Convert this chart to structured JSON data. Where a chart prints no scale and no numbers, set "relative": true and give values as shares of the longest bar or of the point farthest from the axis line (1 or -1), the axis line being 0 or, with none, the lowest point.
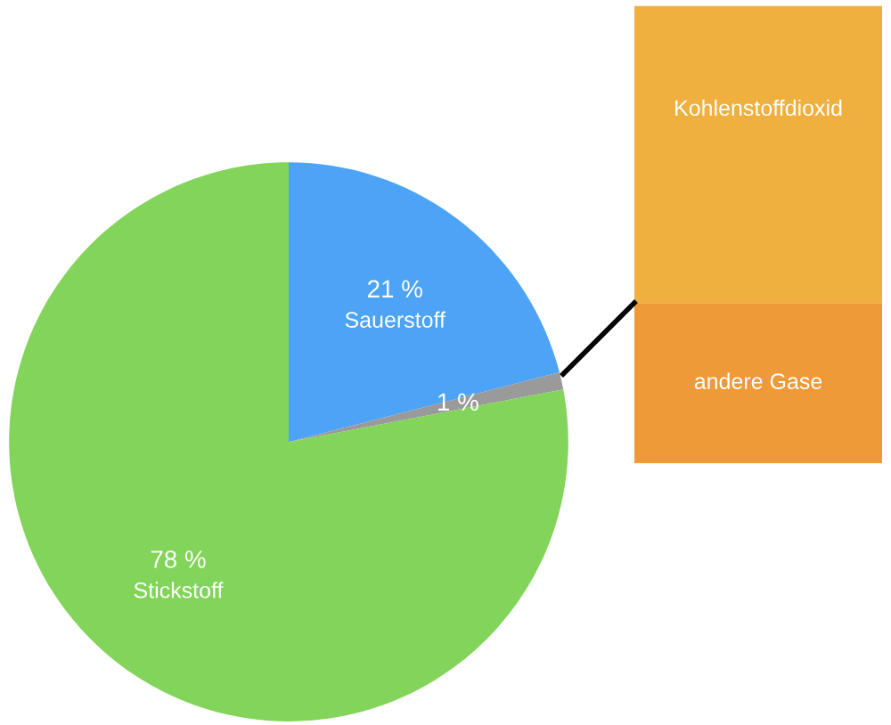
{
  "chart_data": [
    {
      "type": "pie",
      "categories": [
        "Sauerstoff",
        null,
        "Stickstoff"
      ],
      "values": [
        21,
        1,
        78
      ],
      "colors": [
        "#4da3f5",
        "#9a9a9a",
        "#82d45a"
      ],
      "value_labels": [
        "21 %",
        "1 %",
        "78 %"
      ]
    },
    {
      "type": "bar",
      "stacked": true,
      "relative": true,
      "categories": [
        null
      ],
      "series": [
        {
          "name": "andere Gase",
          "color": "#ef9a38",
          "values": [
            0.35
          ]
        },
        {
          "name": "Kohlenstoffdioxid",
          "color": "#f0b040",
          "values": [
            0.65
          ]
        }
      ]
    }
  ]
}
